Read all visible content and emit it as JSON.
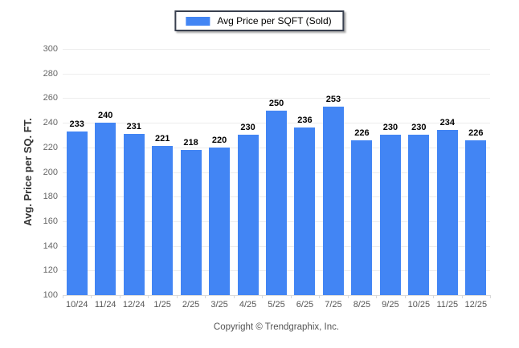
{
  "chart_data": {
    "type": "bar",
    "title": "",
    "categories": [
      "10/24",
      "11/24",
      "12/24",
      "1/25",
      "2/25",
      "3/25",
      "4/25",
      "5/25",
      "6/25",
      "7/25",
      "8/25",
      "9/25",
      "10/25",
      "11/25",
      "12/25"
    ],
    "series": [
      {
        "name": "Avg Price per SQFT (Sold)",
        "values": [
          233,
          240,
          231,
          221,
          218,
          220,
          230,
          250,
          236,
          253,
          226,
          230,
          230,
          234,
          226
        ],
        "color": "#4285f4"
      }
    ],
    "xlabel": "",
    "ylabel": "Avg. Price per SQ. FT.",
    "ylim": [
      100,
      300
    ],
    "ytick_step": 20,
    "grid": true,
    "legend_position": "top-center"
  },
  "footer": {
    "copyright": "Copyright © Trendgraphix, Inc."
  },
  "colors": {
    "bar": "#4285f4",
    "gridline": "#ededed",
    "axis_line": "#dcdcdc",
    "tick_mark": "#d8d8d8",
    "y_tick_label": "#666666",
    "x_tick_label": "#555555",
    "value_label": "#000000",
    "legend_border": "#39404f",
    "footer_text": "#555555"
  }
}
